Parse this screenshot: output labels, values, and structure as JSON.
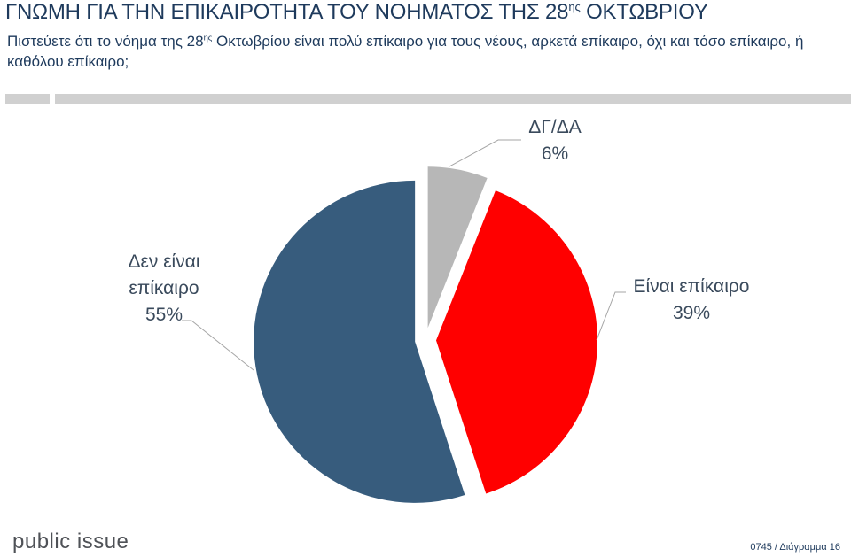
{
  "header": {
    "title_main": "ΓΝΩΜΗ ΓΙΑ ΤΗΝ ΕΠΙΚΑΙΡΟΤΗΤΑ ΤΟΥ ΝΟΗΜΑΤΟΣ ΤΗΣ 28",
    "title_sup": "ης",
    "title_end": " ΟΚΤΩΒΡΙΟΥ",
    "subtitle_start": "Πιστεύετε ότι το νόημα της 28",
    "subtitle_sup": "ης",
    "subtitle_end": " Οκτωβρίου είναι πολύ επίκαιρο για τους νέους, αρκετά επίκαιρο, όχι και τόσο επίκαιρο, ή καθόλου επίκαιρο;"
  },
  "chart_data": {
    "type": "pie",
    "slices": [
      {
        "label_lines": [
          "ΔΓ/ΔΑ"
        ],
        "value": 6,
        "value_label": "6%",
        "color": "#b7b7b7"
      },
      {
        "label_lines": [
          "Είναι επίκαιρο"
        ],
        "value": 39,
        "value_label": "39%",
        "color": "#ff0000"
      },
      {
        "label_lines": [
          "Δεν είναι",
          "επίκαιρο"
        ],
        "value": 55,
        "value_label": "55%",
        "color": "#375c7d"
      }
    ],
    "start_angle_deg": 0,
    "exploded": true
  },
  "footer": {
    "brand": "public issue",
    "ref": "0745 / Διάγραμμα 16"
  }
}
